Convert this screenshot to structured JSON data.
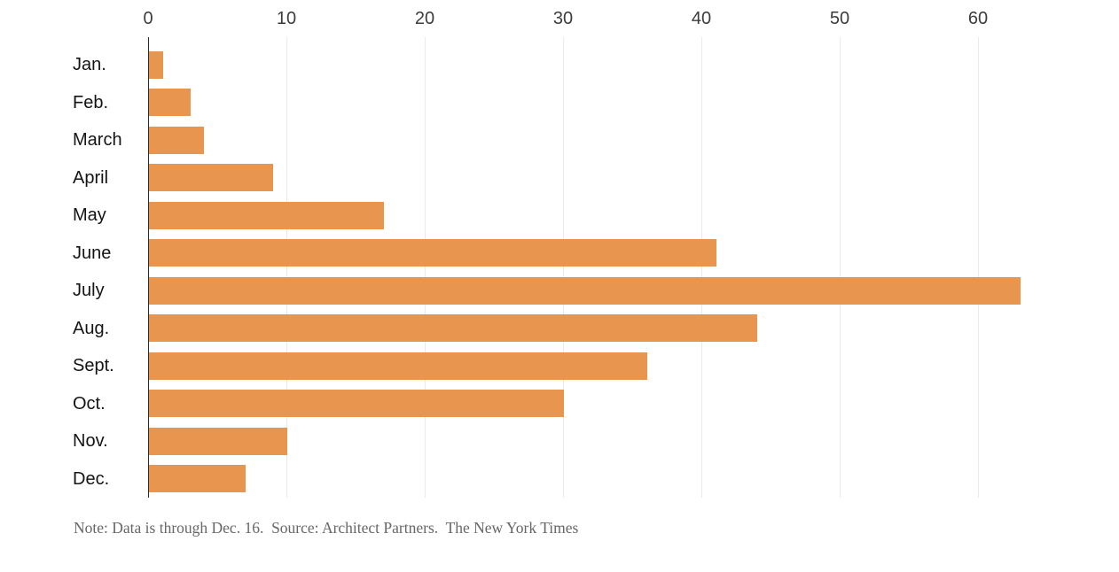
{
  "chart_data": {
    "type": "bar",
    "orientation": "horizontal",
    "categories": [
      "Jan.",
      "Feb.",
      "March",
      "April",
      "May",
      "June",
      "July",
      "Aug.",
      "Sept.",
      "Oct.",
      "Nov.",
      "Dec."
    ],
    "values": [
      1,
      3,
      4,
      9,
      17,
      41,
      63,
      44,
      36,
      30,
      10,
      7
    ],
    "x_ticks": [
      0,
      10,
      20,
      30,
      40,
      50,
      60
    ],
    "xlim": [
      0,
      70
    ],
    "grid": "vertical",
    "legend": "none",
    "title": "",
    "xlabel": "",
    "ylabel": "",
    "bar_color": "#e8964f",
    "grid_color": "#e9e9e9",
    "axis_color": "#2b2b2b"
  },
  "note": "Note: Data is through Dec. 16.  Source: Architect Partners.  The New York Times"
}
